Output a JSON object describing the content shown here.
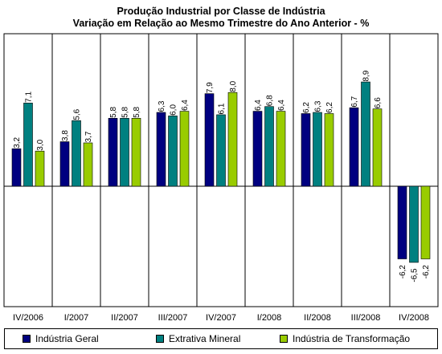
{
  "colors": {
    "series": [
      "#000080",
      "#008080",
      "#99cc00"
    ]
  },
  "chart_data": {
    "type": "bar",
    "title": "Produção Industrial por Classe de Indústria",
    "subtitle": "Variação em Relação ao Mesmo Trimestre do Ano Anterior - %",
    "categories": [
      "IV/2006",
      "I/2007",
      "II/2007",
      "III/2007",
      "IV/2007",
      "I/2008",
      "II/2008",
      "III/2008",
      "IV/2008"
    ],
    "series": [
      {
        "name": "Indústria Geral",
        "values": [
          3.2,
          3.8,
          5.8,
          6.3,
          7.9,
          6.4,
          6.2,
          6.7,
          -6.2
        ],
        "labels": [
          "3,2",
          "3,8",
          "5,8",
          "6,3",
          "7,9",
          "6,4",
          "6,2",
          "6,7",
          "-6,2"
        ]
      },
      {
        "name": "Extrativa Mineral",
        "values": [
          7.1,
          5.6,
          5.8,
          6.0,
          6.1,
          6.8,
          6.3,
          8.9,
          -6.5
        ],
        "labels": [
          "7,1",
          "5,6",
          "5,8",
          "6,0",
          "6,1",
          "6,8",
          "6,3",
          "8,9",
          "-6,5"
        ]
      },
      {
        "name": "Indústria de Transformação",
        "values": [
          3.0,
          3.7,
          5.8,
          6.4,
          8.0,
          6.4,
          6.2,
          6.6,
          -6.2
        ],
        "labels": [
          "3,0",
          "3,7",
          "5,8",
          "6,4",
          "8,0",
          "6,4",
          "6,2",
          "6,6",
          "-6,2"
        ]
      }
    ],
    "ylim": [
      -6.9,
      9.6
    ],
    "grid": true,
    "legend": "bottom",
    "data_labels": true
  }
}
